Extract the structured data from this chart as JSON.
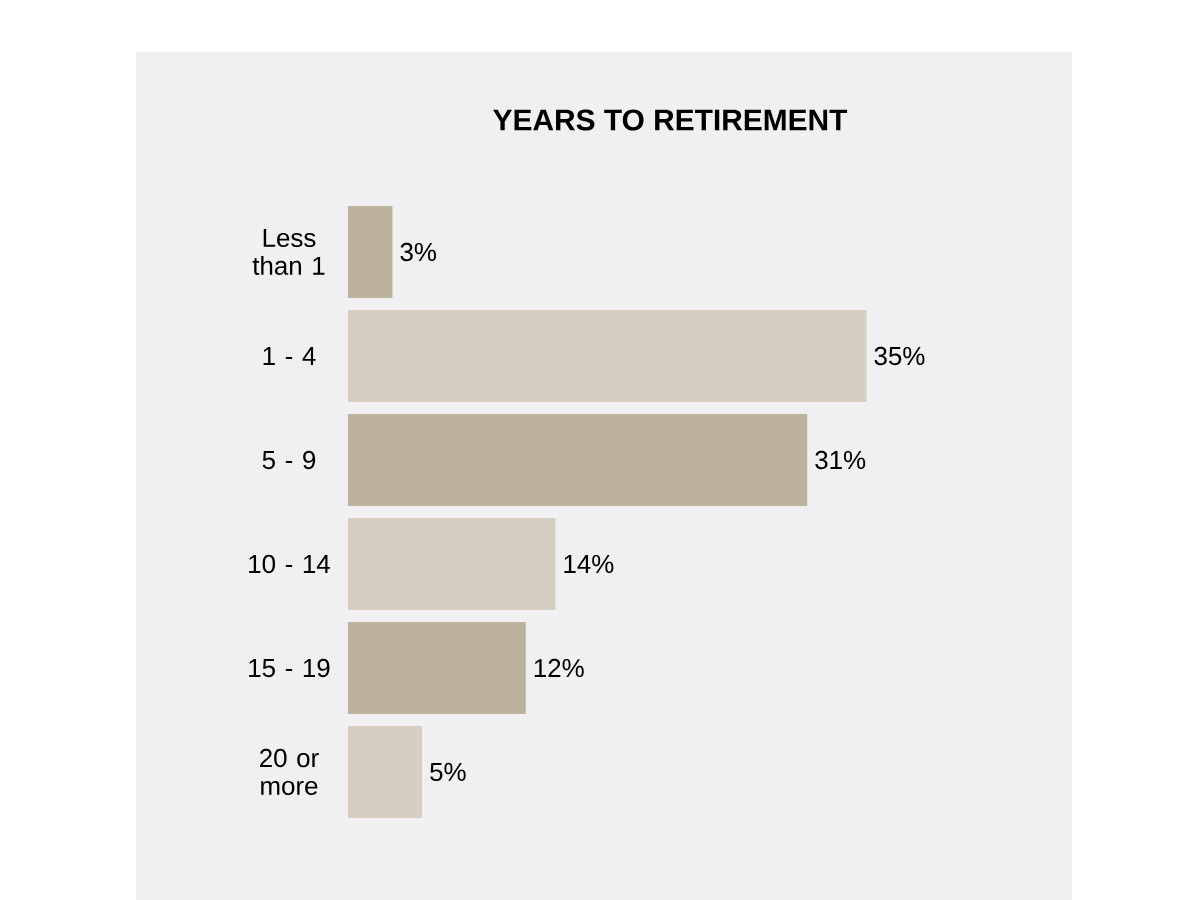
{
  "chart_data": {
    "type": "bar",
    "orientation": "horizontal",
    "title": "YEARS TO RETIREMENT",
    "categories": [
      "Less than 1",
      "1 - 4",
      "5 - 9",
      "10 - 14",
      "15 - 19",
      "20 or more"
    ],
    "values": [
      3,
      35,
      31,
      14,
      12,
      5
    ],
    "colors": [
      "#bcb19a",
      "#d5cec1",
      "#bcb19a",
      "#d5cec1",
      "#bcb19a",
      "#d5cec1"
    ],
    "value_labels": [
      "3%",
      "35%",
      "31%",
      "14%",
      "12%",
      "5%"
    ]
  }
}
